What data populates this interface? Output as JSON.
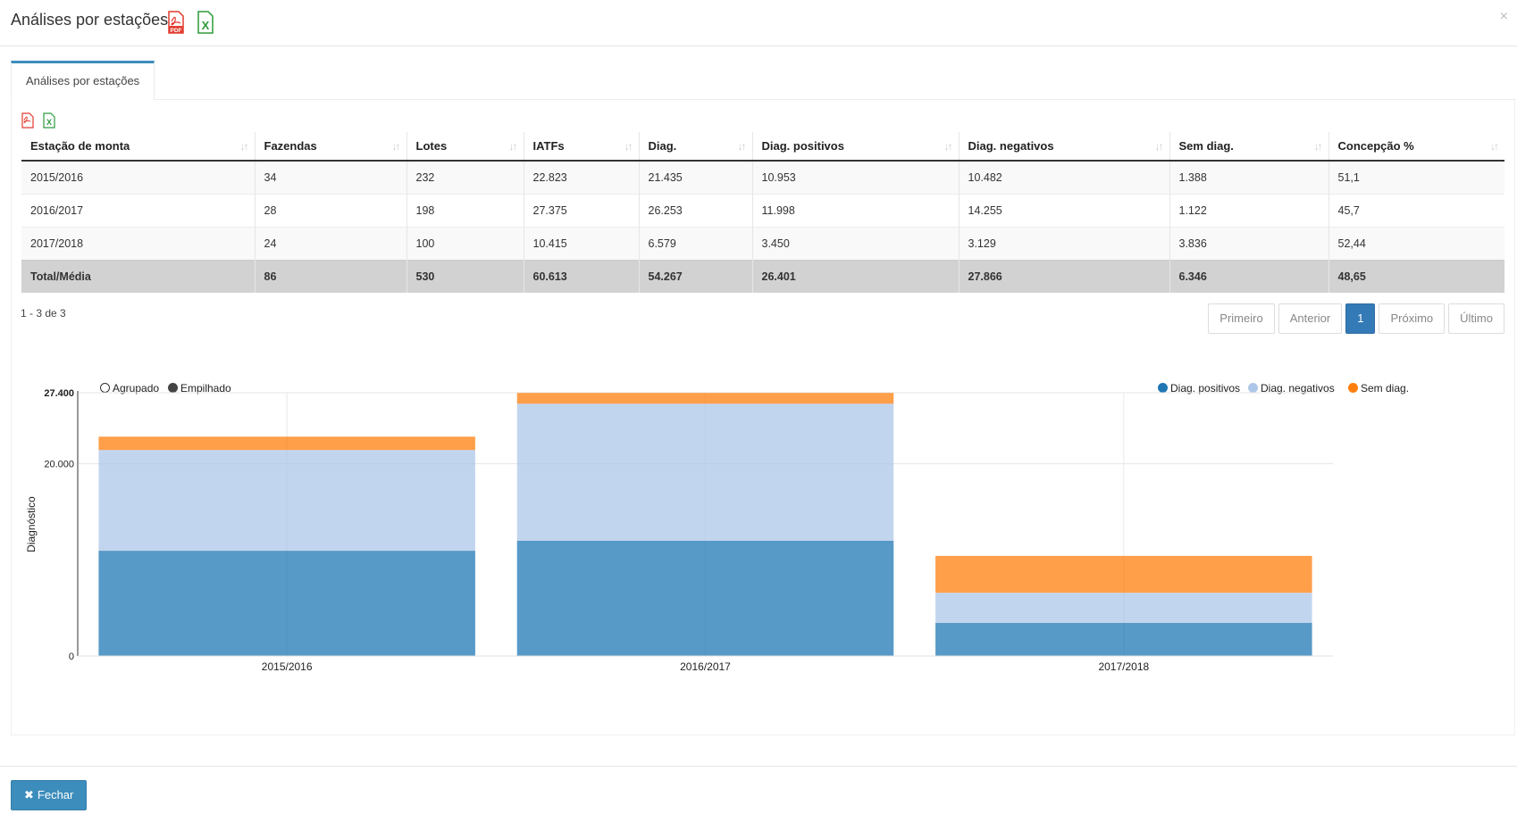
{
  "modal": {
    "title": "Análises por estações",
    "close_symbol": "×"
  },
  "tab": {
    "label": "Análises por estações"
  },
  "table": {
    "columns": [
      "Estação de monta",
      "Fazendas",
      "Lotes",
      "IATFs",
      "Diag.",
      "Diag. positivos",
      "Diag. negativos",
      "Sem diag.",
      "Concepção %"
    ],
    "rows": [
      [
        "2015/2016",
        "34",
        "232",
        "22.823",
        "21.435",
        "10.953",
        "10.482",
        "1.388",
        "51,1"
      ],
      [
        "2016/2017",
        "28",
        "198",
        "27.375",
        "26.253",
        "11.998",
        "14.255",
        "1.122",
        "45,7"
      ],
      [
        "2017/2018",
        "24",
        "100",
        "10.415",
        "6.579",
        "3.450",
        "3.129",
        "3.836",
        "52,44"
      ]
    ],
    "total": [
      "Total/Média",
      "86",
      "530",
      "60.613",
      "54.267",
      "26.401",
      "27.866",
      "6.346",
      "48,65"
    ]
  },
  "pagination": {
    "range_text": "1 - 3 de 3",
    "first": "Primeiro",
    "prev": "Anterior",
    "current": "1",
    "next": "Próximo",
    "last": "Último"
  },
  "chart_toggle": {
    "grouped": "Agrupado",
    "stacked": "Empilhado",
    "selected": "stacked"
  },
  "chart_data": {
    "type": "bar",
    "stacked": true,
    "categories": [
      "2015/2016",
      "2016/2017",
      "2017/2018"
    ],
    "series": [
      {
        "name": "Diag. positivos",
        "color": "#1f77b4",
        "values": [
          10953,
          11998,
          3450
        ]
      },
      {
        "name": "Diag. negativos",
        "color": "#aec7e8",
        "values": [
          10482,
          14255,
          3129
        ]
      },
      {
        "name": "Sem diag.",
        "color": "#ff7f0e",
        "values": [
          1388,
          1122,
          3836
        ]
      }
    ],
    "ylabel": "Diagnóstico",
    "ylim": [
      0,
      27400
    ],
    "y_ticks": [
      "0",
      "20.000",
      "27.400"
    ],
    "y_tick_values": [
      0,
      20000,
      27400
    ],
    "legend": "top-right"
  },
  "footer": {
    "close_label": "Fechar"
  }
}
